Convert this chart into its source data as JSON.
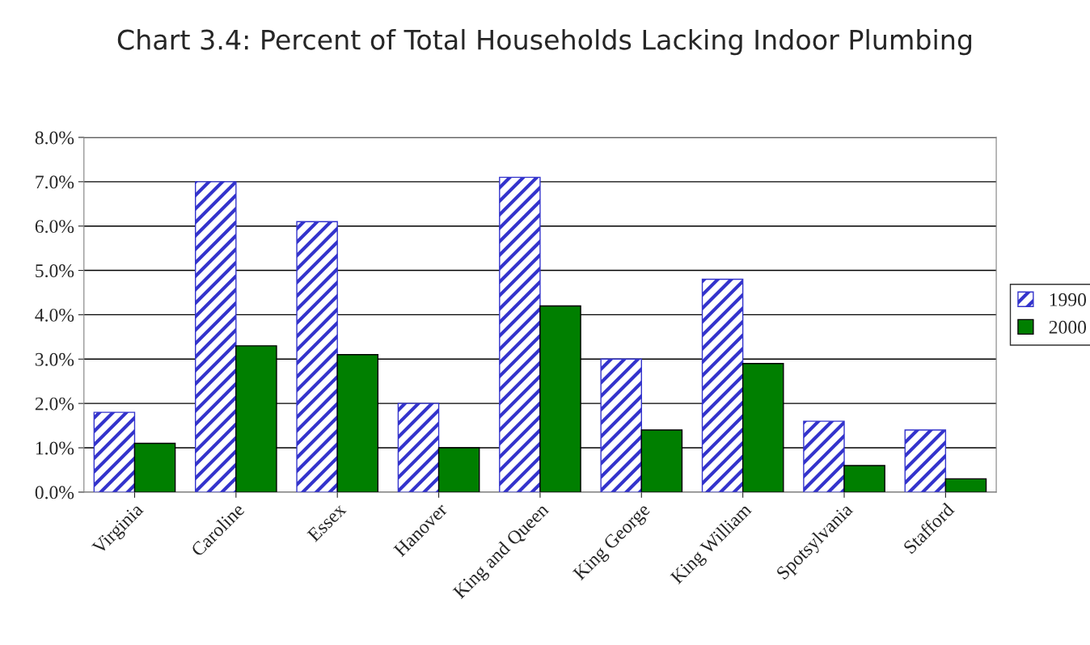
{
  "chart_data": {
    "type": "bar",
    "title": "Chart 3.4: Percent of Total Households Lacking Indoor Plumbing",
    "categories": [
      "Virginia",
      "Caroline",
      "Essex",
      "Hanover",
      "King and Queen",
      "King George",
      "King William",
      "Spotsylvania",
      "Stafford"
    ],
    "series": [
      {
        "name": "1990",
        "color": "#3333cc",
        "values": [
          1.8,
          7.0,
          6.1,
          2.0,
          7.1,
          3.0,
          4.8,
          1.6,
          1.4
        ]
      },
      {
        "name": "2000",
        "color": "#007f00",
        "values": [
          1.1,
          3.3,
          3.1,
          1.0,
          4.2,
          1.4,
          2.9,
          0.6,
          0.3
        ]
      }
    ],
    "ylim": [
      0,
      8
    ],
    "yticks": [
      {
        "value": 0,
        "label": "0.0%"
      },
      {
        "value": 1,
        "label": "1.0%"
      },
      {
        "value": 2,
        "label": "2.0%"
      },
      {
        "value": 3,
        "label": "3.0%"
      },
      {
        "value": 4,
        "label": "4.0%"
      },
      {
        "value": 5,
        "label": "5.0%"
      },
      {
        "value": 6,
        "label": "6.0%"
      },
      {
        "value": 7,
        "label": "7.0%"
      },
      {
        "value": 8,
        "label": "8.0%"
      }
    ],
    "grid": "y",
    "legend": "right"
  }
}
